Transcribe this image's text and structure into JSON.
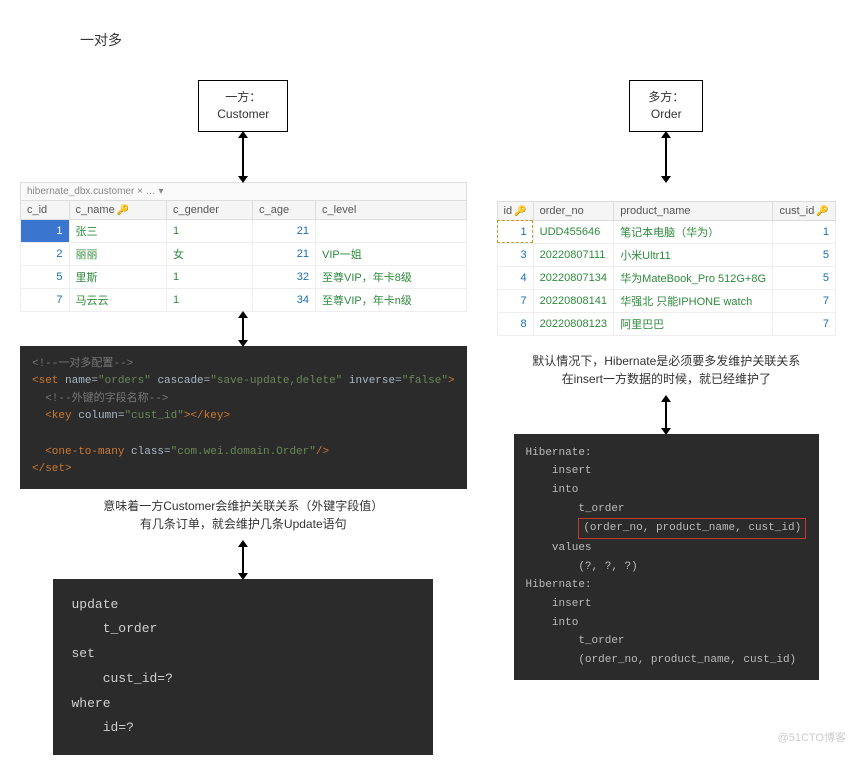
{
  "title": "一对多",
  "left": {
    "box": {
      "line1": "一方：",
      "line2": "Customer"
    },
    "tabbar": "hibernate_dbx.customer × …  ▾",
    "table": {
      "columns": [
        "c_id",
        "c_name",
        "c_gender",
        "c_age",
        "c_level"
      ],
      "key_cols": [
        1
      ],
      "rows": [
        {
          "c_id": "1",
          "c_name": "张三",
          "c_gender": "1",
          "c_age": "21",
          "c_level": "",
          "selected": true
        },
        {
          "c_id": "2",
          "c_name": "丽丽",
          "c_gender": "女",
          "c_age": "21",
          "c_level": "VIP一姐"
        },
        {
          "c_id": "5",
          "c_name": "里斯",
          "c_gender": "1",
          "c_age": "32",
          "c_level": "至尊VIP，年卡8级"
        },
        {
          "c_id": "7",
          "c_name": "马云云",
          "c_gender": "1",
          "c_age": "34",
          "c_level": "至尊VIP，年卡n级"
        }
      ]
    },
    "xml": {
      "c1": "<!--一对多配置-->",
      "l1a": "<set",
      "l1_name": "name=",
      "l1_namev": "\"orders\"",
      "l1_casc": "cascade=",
      "l1_cascv": "\"save-update,delete\"",
      "l1_inv": "inverse=",
      "l1_invv": "\"false\"",
      "l1z": ">",
      "c2": "  <!--外键的字段名称-->",
      "l2a": "  <key",
      "l2_col": "column=",
      "l2_colv": "\"cust_id\"",
      "l2b": "></key>",
      "l3a": "  <one-to-many",
      "l3_cls": "class=",
      "l3_clsv": "\"com.wei.domain.Order\"",
      "l3b": "/>",
      "l4": "</set>"
    },
    "caption1": "意味着一方Customer会维护关联关系（外键字段值）",
    "caption2": "有几条订单，就会维护几条Update语句",
    "sql": "update\n    t_order\nset\n    cust_id=?\nwhere\n    id=?"
  },
  "right": {
    "box": {
      "line1": "多方：",
      "line2": "Order"
    },
    "table": {
      "columns": [
        "id",
        "order_no",
        "product_name",
        "cust_id"
      ],
      "key_cols": [
        0,
        3
      ],
      "rows": [
        {
          "id": "1",
          "order_no": "UDD455646",
          "product_name": "笔记本电脑（华为）",
          "cust_id": "1",
          "dashed": true
        },
        {
          "id": "3",
          "order_no": "20220807111",
          "product_name": "小米Ultr11",
          "cust_id": "5"
        },
        {
          "id": "4",
          "order_no": "20220807134",
          "product_name": "华为MateBook_Pro 512G+8G",
          "cust_id": "5"
        },
        {
          "id": "7",
          "order_no": "20220808141",
          "product_name": "华强北 只能IPHONE watch",
          "cust_id": "7"
        },
        {
          "id": "8",
          "order_no": "20220808123",
          "product_name": "阿里巴巴",
          "cust_id": "7"
        }
      ]
    },
    "caption1": "默认情况下，Hibernate是必须要多发维护关联关系",
    "caption2": "在insert一方数据的时候，就已经维护了",
    "sql_lines": [
      "Hibernate:",
      "    insert",
      "    into",
      "        t_order",
      "        (order_no, product_name, cust_id)",
      "    values",
      "        (?, ?, ?)",
      "Hibernate:",
      "    insert",
      "    into",
      "        t_order",
      "        (order_no, product_name, cust_id)"
    ],
    "highlight_index": 4
  },
  "styling": {
    "bg": "#ffffff",
    "code_bg": "#2b2b2b",
    "code_fg": "#bbbbbb",
    "num_color": "#1a6fb0",
    "txt_color": "#2e8b3d",
    "key_color": "#e0b000",
    "sel_bg": "#3a76d0",
    "hl_border": "#c0392b",
    "font": "Microsoft YaHei"
  },
  "watermark": "@51CTO博客"
}
